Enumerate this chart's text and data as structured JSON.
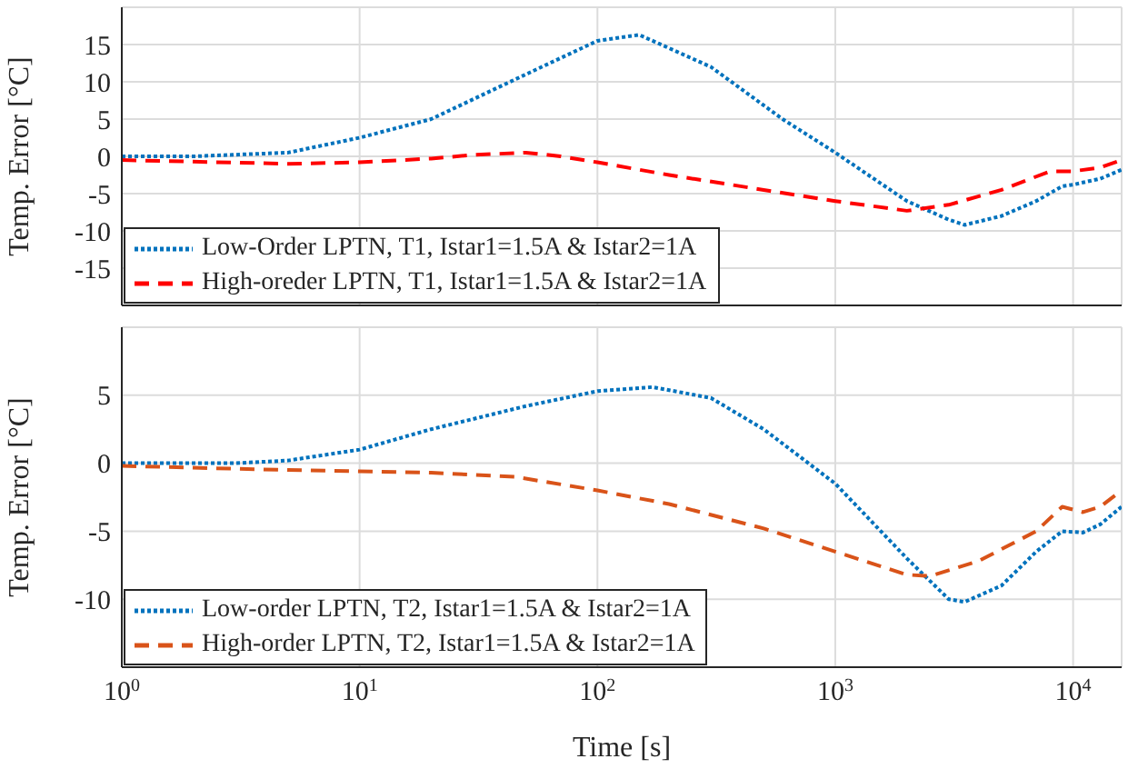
{
  "chart_data": [
    {
      "type": "line",
      "ylabel": "Temp. Error [°C]",
      "log": "x",
      "xlim": [
        1,
        16000
      ],
      "ylim": [
        -20,
        20
      ],
      "yticks": [
        -15,
        -10,
        -5,
        0,
        5,
        10,
        15
      ],
      "xticks": [
        {
          "value": 1,
          "label": null
        },
        {
          "value": 10,
          "label": null
        },
        {
          "value": 100,
          "label": null
        },
        {
          "value": 1000,
          "label": null
        },
        {
          "value": 10000,
          "label": null
        }
      ],
      "tick_labels": "y",
      "grid": true,
      "legend": "bottom left",
      "series": [
        {
          "name": "Low-Order LPTN, T1, Istar1=1.5A & Istar2=1A",
          "color": "#0072bd",
          "line_style": "dotted",
          "x": [
            1,
            2,
            5,
            10,
            20,
            50,
            100,
            150,
            300,
            600,
            1000,
            2000,
            3000,
            3500,
            5000,
            7000,
            9000,
            10000,
            13000,
            16000
          ],
          "values": [
            0,
            0,
            0.5,
            2.5,
            5,
            11,
            15.5,
            16.3,
            12,
            5,
            0.5,
            -6,
            -8.5,
            -9.2,
            -8,
            -6,
            -4,
            -3.8,
            -3,
            -1.8
          ]
        },
        {
          "name": "High-oreder LPTN, T1, Istar1=1.5A & Istar2=1A",
          "color": "#ff0000",
          "line_style": "dashed",
          "x": [
            1,
            5,
            10,
            20,
            30,
            50,
            70,
            100,
            200,
            500,
            1000,
            2000,
            3000,
            5000,
            8000,
            10000,
            13000,
            16000
          ],
          "values": [
            -0.5,
            -1,
            -0.8,
            -0.3,
            0.2,
            0.5,
            0,
            -0.8,
            -2.5,
            -4.5,
            -6,
            -7.3,
            -6.5,
            -4.5,
            -2,
            -2,
            -1.5,
            -0.5
          ]
        }
      ]
    },
    {
      "type": "line",
      "ylabel": "Temp. Error [°C]",
      "xlabel": "Time [s]",
      "log": "x",
      "xlim": [
        1,
        16000
      ],
      "ylim": [
        -15,
        10
      ],
      "yticks": [
        -10,
        -5,
        0,
        5
      ],
      "xticks": [
        {
          "value": 1,
          "label": "10$^{0}$"
        },
        {
          "value": 10,
          "label": "10$^{1}$"
        },
        {
          "value": 100,
          "label": "10$^{2}$"
        },
        {
          "value": 1000,
          "label": "10$^{3}$"
        },
        {
          "value": 10000,
          "label": "10$^{4}$"
        }
      ],
      "grid": true,
      "legend": "bottom left",
      "series": [
        {
          "name": "Low-order LPTN, T2, Istar1=1.5A & Istar2=1A",
          "color": "#0072bd",
          "line_style": "dotted",
          "x": [
            1,
            3,
            5,
            10,
            20,
            50,
            100,
            170,
            300,
            500,
            1000,
            2000,
            3000,
            3500,
            5000,
            7000,
            9000,
            11000,
            13000,
            16000
          ],
          "values": [
            0,
            0,
            0.2,
            1,
            2.5,
            4.2,
            5.3,
            5.6,
            4.8,
            2.5,
            -1.5,
            -7,
            -10,
            -10.2,
            -9,
            -6.5,
            -5,
            -5.1,
            -4.5,
            -3.2
          ]
        },
        {
          "name": "High-order LPTN, T2, Istar1=1.5A & Istar2=1A",
          "color": "#d95319",
          "line_style": "dashed",
          "x": [
            1,
            5,
            10,
            20,
            45,
            100,
            200,
            500,
            1000,
            2000,
            2500,
            4000,
            7000,
            9000,
            11000,
            13000,
            16000
          ],
          "values": [
            -0.2,
            -0.5,
            -0.6,
            -0.7,
            -1,
            -2,
            -3,
            -4.8,
            -6.5,
            -8.2,
            -8.3,
            -7.2,
            -5,
            -3.2,
            -3.6,
            -3.2,
            -2
          ]
        }
      ]
    }
  ]
}
